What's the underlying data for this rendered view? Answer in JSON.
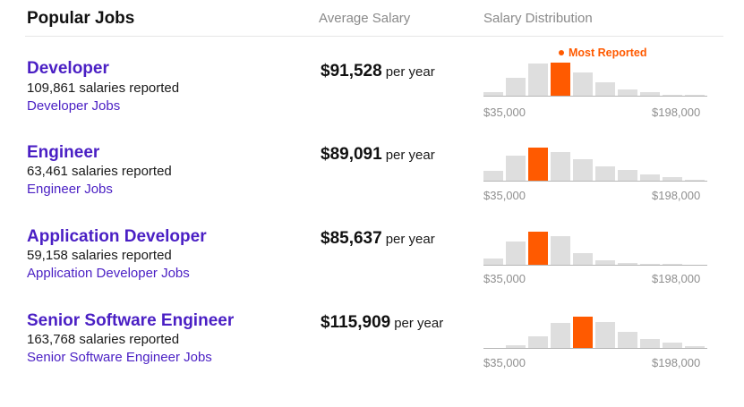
{
  "header": {
    "title": "Popular Jobs",
    "avg_salary_label": "Average Salary",
    "distribution_label": "Salary Distribution"
  },
  "most_reported_label": "Most Reported",
  "axis": {
    "min": "$35,000",
    "max": "$198,000"
  },
  "colors": {
    "accent": "#ff5a00",
    "link": "#4a1fc4",
    "bar": "#dedede"
  },
  "jobs": [
    {
      "title": "Developer",
      "count": "109,861 salaries reported",
      "link": "Developer Jobs",
      "salary": "$91,528",
      "per": "per year",
      "distribution": [
        0.12,
        0.55,
        0.98,
        1.0,
        0.72,
        0.42,
        0.2,
        0.12,
        0.06,
        0.04
      ],
      "highlight_index": 3
    },
    {
      "title": "Engineer",
      "count": "63,461 salaries reported",
      "link": "Engineer Jobs",
      "salary": "$89,091",
      "per": "per year",
      "distribution": [
        0.32,
        0.75,
        1.0,
        0.88,
        0.67,
        0.45,
        0.33,
        0.2,
        0.12,
        0.05
      ],
      "highlight_index": 2
    },
    {
      "title": "Application Developer",
      "count": "59,158 salaries reported",
      "link": "Application Developer Jobs",
      "salary": "$85,637",
      "per": "per year",
      "distribution": [
        0.2,
        0.7,
        1.0,
        0.86,
        0.36,
        0.16,
        0.08,
        0.06,
        0.04,
        0.03
      ],
      "highlight_index": 2
    },
    {
      "title": "Senior Software Engineer",
      "count": "163,768 salaries reported",
      "link": "Senior Software Engineer Jobs",
      "salary": "$115,909",
      "per": "per year",
      "distribution": [
        0.02,
        0.1,
        0.36,
        0.76,
        0.96,
        0.8,
        0.5,
        0.3,
        0.18,
        0.08
      ],
      "highlight_index": 4
    }
  ]
}
